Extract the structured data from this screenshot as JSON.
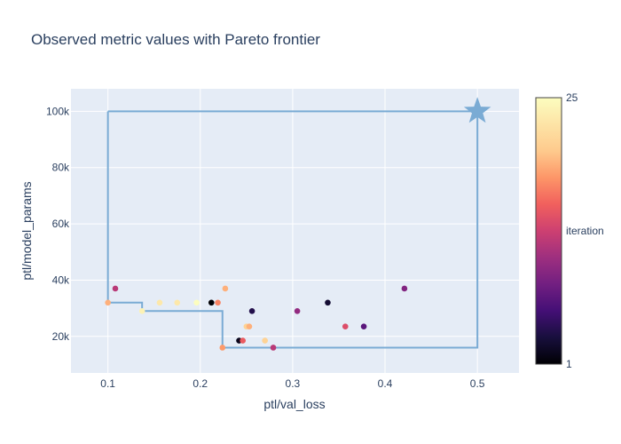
{
  "chart_data": {
    "type": "scatter",
    "title": "Observed metric values with Pareto frontier",
    "xlabel": "ptl/val_loss",
    "ylabel": "ptl/model_params",
    "xlim": [
      0.06,
      0.545
    ],
    "ylim": [
      7000,
      108000
    ],
    "x_ticks": [
      0.1,
      0.2,
      0.3,
      0.4,
      0.5
    ],
    "x_tick_labels": [
      "0.1",
      "0.2",
      "0.3",
      "0.4",
      "0.5"
    ],
    "y_ticks": [
      20000,
      40000,
      60000,
      80000,
      100000
    ],
    "y_tick_labels": [
      "20k",
      "40k",
      "60k",
      "80k",
      "100k"
    ],
    "grid": true,
    "colorbar": {
      "title": "iteration",
      "min": 1,
      "max": 25,
      "min_label": "1",
      "max_label": "25",
      "colorscale": "magma"
    },
    "points": [
      {
        "x": 0.1,
        "y": 32000,
        "iteration": 19
      },
      {
        "x": 0.108,
        "y": 37000,
        "iteration": 12
      },
      {
        "x": 0.137,
        "y": 29000,
        "iteration": 24
      },
      {
        "x": 0.156,
        "y": 32000,
        "iteration": 23
      },
      {
        "x": 0.175,
        "y": 32000,
        "iteration": 23
      },
      {
        "x": 0.196,
        "y": 32000,
        "iteration": 25
      },
      {
        "x": 0.212,
        "y": 32000,
        "iteration": 1
      },
      {
        "x": 0.219,
        "y": 32000,
        "iteration": 17
      },
      {
        "x": 0.224,
        "y": 16000,
        "iteration": 18
      },
      {
        "x": 0.227,
        "y": 37000,
        "iteration": 19
      },
      {
        "x": 0.242,
        "y": 18500,
        "iteration": 2
      },
      {
        "x": 0.246,
        "y": 18500,
        "iteration": 15
      },
      {
        "x": 0.25,
        "y": 23500,
        "iteration": 21
      },
      {
        "x": 0.253,
        "y": 23500,
        "iteration": 19
      },
      {
        "x": 0.256,
        "y": 29000,
        "iteration": 4
      },
      {
        "x": 0.27,
        "y": 18500,
        "iteration": 21
      },
      {
        "x": 0.279,
        "y": 16000,
        "iteration": 12
      },
      {
        "x": 0.305,
        "y": 29000,
        "iteration": 10
      },
      {
        "x": 0.338,
        "y": 32000,
        "iteration": 3
      },
      {
        "x": 0.357,
        "y": 23500,
        "iteration": 14
      },
      {
        "x": 0.377,
        "y": 23500,
        "iteration": 7
      },
      {
        "x": 0.421,
        "y": 37000,
        "iteration": 9
      }
    ],
    "reference_point": {
      "x": 0.5,
      "y": 100000
    },
    "frontier": [
      [
        0.1,
        100000
      ],
      [
        0.1,
        32000
      ],
      [
        0.137,
        32000
      ],
      [
        0.137,
        29000
      ],
      [
        0.224,
        29000
      ],
      [
        0.224,
        16000
      ],
      [
        0.5,
        16000
      ],
      [
        0.5,
        100000
      ],
      [
        0.1,
        100000
      ]
    ],
    "colors": {
      "plot_bg": "#e5ecf6",
      "grid": "#ffffff",
      "frontier": "#7aabd4",
      "text": "#2a3f5f"
    }
  }
}
